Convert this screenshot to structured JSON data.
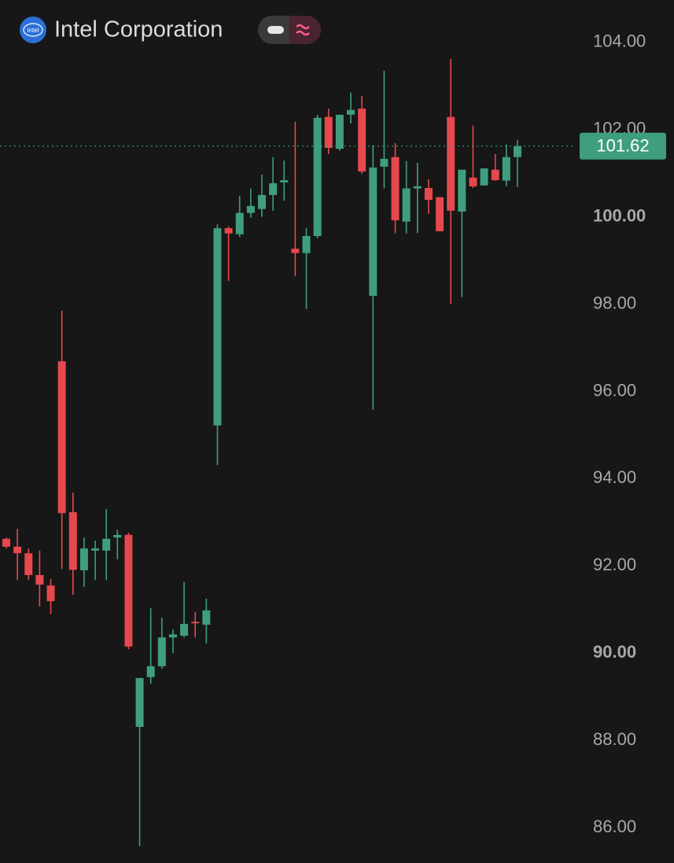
{
  "chart_data": {
    "type": "candlestick",
    "title": "Intel Corporation",
    "logo_text": "intel",
    "up_color": "#3f9e7f",
    "down_color": "#e5484d",
    "open": [
      92.62,
      92.44,
      92.29,
      91.79,
      91.55,
      96.69,
      93.23,
      91.9,
      92.35,
      92.35,
      92.65,
      92.71,
      88.31,
      89.45,
      89.7,
      90.36,
      90.4,
      90.72,
      90.65,
      95.22,
      99.74,
      99.6,
      100.09,
      100.18,
      100.5,
      100.79,
      99.27,
      99.17,
      99.56,
      102.29,
      101.56,
      102.34,
      102.48,
      98.19,
      101.15,
      101.37,
      99.89,
      100.65,
      100.66,
      100.45,
      102.29,
      100.12,
      100.9,
      100.72,
      101.08,
      100.83,
      101.37
    ],
    "high": [
      92.65,
      92.85,
      92.4,
      92.35,
      91.7,
      97.85,
      93.68,
      92.65,
      92.58,
      93.3,
      92.83,
      92.76,
      89.43,
      91.03,
      90.81,
      90.54,
      91.63,
      90.94,
      91.25,
      99.83,
      99.78,
      100.48,
      100.65,
      100.97,
      101.37,
      101.29,
      102.18,
      99.74,
      102.34,
      102.48,
      102.34,
      102.85,
      102.77,
      101.64,
      103.35,
      101.69,
      101.28,
      101.24,
      100.86,
      100.45,
      103.62,
      101.08,
      102.09,
      101.11,
      101.44,
      101.66,
      101.76
    ],
    "low": [
      92.4,
      91.68,
      91.68,
      91.07,
      90.89,
      91.93,
      91.34,
      91.52,
      91.68,
      91.68,
      92.15,
      90.09,
      85.58,
      89.3,
      89.64,
      90.0,
      90.36,
      90.36,
      90.22,
      94.31,
      98.53,
      99.54,
      99.98,
      100.0,
      100.14,
      100.37,
      98.64,
      97.89,
      99.51,
      101.44,
      101.51,
      102.14,
      100.99,
      95.58,
      100.65,
      99.62,
      99.62,
      99.63,
      100.07,
      99.67,
      98.01,
      98.16,
      100.66,
      100.72,
      100.83,
      100.7,
      100.68
    ],
    "close": [
      92.44,
      92.29,
      91.79,
      91.57,
      91.19,
      93.21,
      91.91,
      92.4,
      92.4,
      92.62,
      92.71,
      90.15,
      89.43,
      89.7,
      90.36,
      90.43,
      90.67,
      90.69,
      90.98,
      99.74,
      99.62,
      100.09,
      100.25,
      100.5,
      100.77,
      100.84,
      99.17,
      99.56,
      102.27,
      101.58,
      102.34,
      102.45,
      101.04,
      101.13,
      101.33,
      99.92,
      100.65,
      100.7,
      100.39,
      99.67,
      100.14,
      101.08,
      100.7,
      101.11,
      100.84,
      101.37,
      101.62
    ],
    "last_price": 101.62,
    "ylim": [
      85.19,
      104.97
    ],
    "yticks": [
      {
        "value": 86,
        "label": "86.00"
      },
      {
        "value": 88,
        "label": "88.00"
      },
      {
        "value": 90,
        "label": "90.00"
      },
      {
        "value": 92,
        "label": "92.00"
      },
      {
        "value": 94,
        "label": "94.00"
      },
      {
        "value": 96,
        "label": "96.00"
      },
      {
        "value": 98,
        "label": "98.00"
      },
      {
        "value": 100,
        "label": "100.00"
      },
      {
        "value": 102,
        "label": "102.00"
      },
      {
        "value": 104,
        "label": "104.00"
      }
    ]
  }
}
